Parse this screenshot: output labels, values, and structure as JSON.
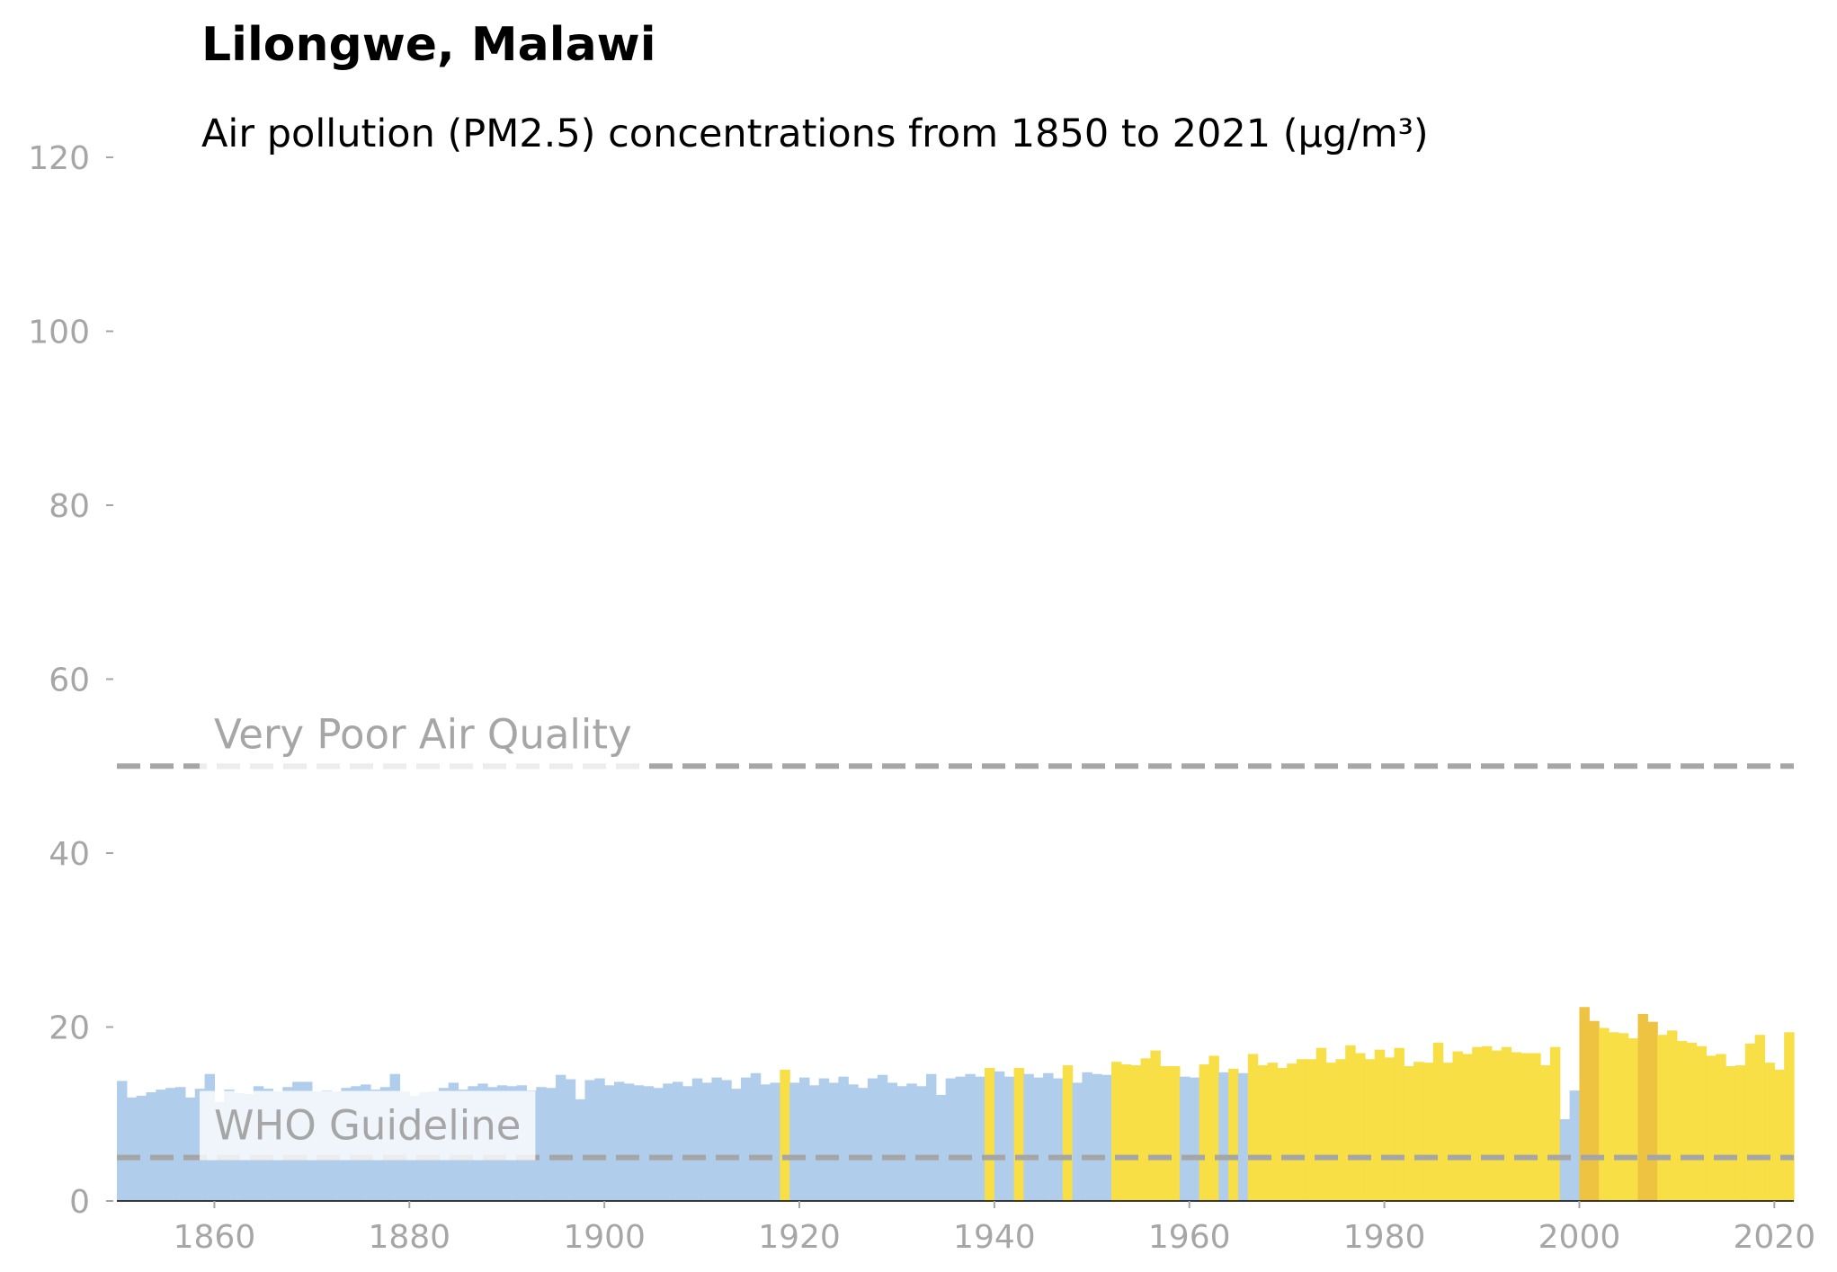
{
  "chart_data": {
    "type": "bar",
    "title": "Lilongwe, Malawi",
    "subtitle": "Air pollution (PM2.5) concentrations from 1850 to 2021 (µg/m³)",
    "xlabel": "",
    "ylabel": "",
    "xlim": [
      1850,
      2022
    ],
    "ylim": [
      0,
      120
    ],
    "x_ticks": [
      1860,
      1880,
      1900,
      1920,
      1940,
      1960,
      1980,
      2000,
      2020
    ],
    "y_ticks": [
      0,
      20,
      40,
      60,
      80,
      100,
      120
    ],
    "grid": false,
    "colors": {
      "below_10": "#b0cdeb",
      "10_to_15": "#f7df45",
      "above_20": "#eec341",
      "reference_line": "#a6a6a6",
      "axis_text": "#a6a6a6"
    },
    "color_bands": [
      {
        "min": 0,
        "max": 15,
        "color": "#b0cdeb"
      },
      {
        "min": 15,
        "max": 20,
        "color": "#f7df45"
      },
      {
        "min": 20,
        "max": 999,
        "color": "#eec341"
      }
    ],
    "reference_lines": [
      {
        "label": "WHO Guideline",
        "value": 5
      },
      {
        "label": "Very Poor Air Quality",
        "value": 50
      }
    ],
    "x": [
      1850,
      1851,
      1852,
      1853,
      1854,
      1855,
      1856,
      1857,
      1858,
      1859,
      1860,
      1861,
      1862,
      1863,
      1864,
      1865,
      1866,
      1867,
      1868,
      1869,
      1870,
      1871,
      1872,
      1873,
      1874,
      1875,
      1876,
      1877,
      1878,
      1879,
      1880,
      1881,
      1882,
      1883,
      1884,
      1885,
      1886,
      1887,
      1888,
      1889,
      1890,
      1891,
      1892,
      1893,
      1894,
      1895,
      1896,
      1897,
      1898,
      1899,
      1900,
      1901,
      1902,
      1903,
      1904,
      1905,
      1906,
      1907,
      1908,
      1909,
      1910,
      1911,
      1912,
      1913,
      1914,
      1915,
      1916,
      1917,
      1918,
      1919,
      1920,
      1921,
      1922,
      1923,
      1924,
      1925,
      1926,
      1927,
      1928,
      1929,
      1930,
      1931,
      1932,
      1933,
      1934,
      1935,
      1936,
      1937,
      1938,
      1939,
      1940,
      1941,
      1942,
      1943,
      1944,
      1945,
      1946,
      1947,
      1948,
      1949,
      1950,
      1951,
      1952,
      1953,
      1954,
      1955,
      1956,
      1957,
      1958,
      1959,
      1960,
      1961,
      1962,
      1963,
      1964,
      1965,
      1966,
      1967,
      1968,
      1969,
      1970,
      1971,
      1972,
      1973,
      1974,
      1975,
      1976,
      1977,
      1978,
      1979,
      1980,
      1981,
      1982,
      1983,
      1984,
      1985,
      1986,
      1987,
      1988,
      1989,
      1990,
      1991,
      1992,
      1993,
      1994,
      1995,
      1996,
      1997,
      1998,
      1999,
      2000,
      2001,
      2002,
      2003,
      2004,
      2005,
      2006,
      2007,
      2008,
      2009,
      2010,
      2011,
      2012,
      2013,
      2014,
      2015,
      2016,
      2017,
      2018,
      2019,
      2020,
      2021
    ],
    "values": [
      13.8,
      11.9,
      12.1,
      12.5,
      12.8,
      13.0,
      13.1,
      11.9,
      12.9,
      14.6,
      11.4,
      12.8,
      12.4,
      12.3,
      13.2,
      12.9,
      12.6,
      13.1,
      13.7,
      13.7,
      12.6,
      12.7,
      12.6,
      13.0,
      13.2,
      13.4,
      12.8,
      13.1,
      14.6,
      12.6,
      12.1,
      12.5,
      12.6,
      13.0,
      13.6,
      12.8,
      13.2,
      13.5,
      13.1,
      13.3,
      13.2,
      13.3,
      12.7,
      13.1,
      13.0,
      14.5,
      14.0,
      11.7,
      13.9,
      14.1,
      13.3,
      13.7,
      13.5,
      13.3,
      13.2,
      13.0,
      13.5,
      13.7,
      13.2,
      14.1,
      13.6,
      14.2,
      13.9,
      12.9,
      14.2,
      14.7,
      13.4,
      13.6,
      15.1,
      13.6,
      14.2,
      13.3,
      14.1,
      13.6,
      14.3,
      13.4,
      13.0,
      14.1,
      14.5,
      13.6,
      13.2,
      13.5,
      13.2,
      14.6,
      12.2,
      14.1,
      14.3,
      14.6,
      14.3,
      15.3,
      14.9,
      14.3,
      15.3,
      14.6,
      14.2,
      14.7,
      14.1,
      15.6,
      13.6,
      14.8,
      14.6,
      14.5,
      16.0,
      15.7,
      15.6,
      16.4,
      17.3,
      15.5,
      15.5,
      14.3,
      14.2,
      15.7,
      16.7,
      14.8,
      15.2,
      14.7,
      16.9,
      15.6,
      15.9,
      15.3,
      15.8,
      16.3,
      16.3,
      17.6,
      15.9,
      16.3,
      17.9,
      17.0,
      16.3,
      17.4,
      16.5,
      17.6,
      15.5,
      16.0,
      15.9,
      18.2,
      15.9,
      17.2,
      16.9,
      17.7,
      17.8,
      17.3,
      17.7,
      17.1,
      17.0,
      17.0,
      15.6,
      17.7,
      9.4,
      12.7,
      22.3,
      20.7,
      19.9,
      19.4,
      19.3,
      18.7,
      21.5,
      20.6,
      19.1,
      19.6,
      18.4,
      18.2,
      17.8,
      16.7,
      16.9,
      15.5,
      15.6,
      18.1,
      19.1,
      15.9,
      15.1,
      19.4
    ]
  }
}
